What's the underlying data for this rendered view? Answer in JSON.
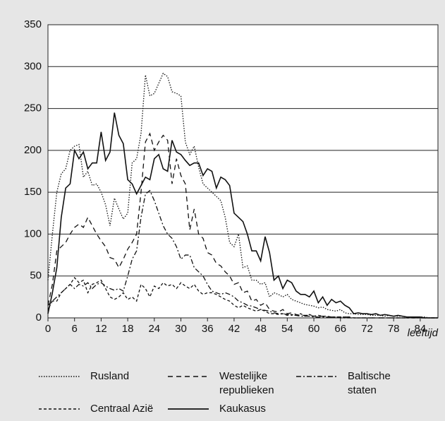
{
  "chart_data": {
    "type": "line",
    "x_label": "leeftijd",
    "x": [
      0,
      1,
      2,
      3,
      4,
      5,
      6,
      7,
      8,
      9,
      10,
      11,
      12,
      13,
      14,
      15,
      16,
      17,
      18,
      19,
      20,
      21,
      22,
      23,
      24,
      25,
      26,
      27,
      28,
      29,
      30,
      31,
      32,
      33,
      34,
      35,
      36,
      37,
      38,
      39,
      40,
      41,
      42,
      43,
      44,
      45,
      46,
      47,
      48,
      49,
      50,
      51,
      52,
      53,
      54,
      55,
      56,
      57,
      58,
      59,
      60,
      61,
      62,
      63,
      64,
      65,
      66,
      67,
      68,
      69,
      70,
      71,
      72,
      73,
      74,
      75,
      76,
      77,
      78,
      79,
      80,
      81,
      82,
      83,
      84,
      85,
      86,
      87,
      88
    ],
    "xlim": [
      0,
      88
    ],
    "xticks": [
      0,
      6,
      12,
      18,
      24,
      30,
      36,
      42,
      48,
      54,
      60,
      66,
      72,
      78,
      84
    ],
    "ylim": [
      0,
      350
    ],
    "yticks": [
      0,
      50,
      100,
      150,
      200,
      250,
      300,
      350
    ],
    "grid": true,
    "series": [
      {
        "name": "Rusland",
        "color": "#111111",
        "style": "dotted",
        "values": [
          45,
          100,
          150,
          172,
          178,
          200,
          205,
          207,
          168,
          175,
          158,
          160,
          150,
          135,
          110,
          143,
          130,
          118,
          125,
          185,
          190,
          220,
          290,
          265,
          268,
          280,
          292,
          288,
          270,
          268,
          265,
          210,
          195,
          205,
          180,
          160,
          155,
          150,
          145,
          140,
          120,
          90,
          85,
          100,
          60,
          62,
          45,
          45,
          40,
          42,
          25,
          30,
          28,
          25,
          28,
          22,
          20,
          18,
          16,
          15,
          14,
          12,
          13,
          10,
          9,
          8,
          10,
          6,
          5,
          5,
          4,
          4,
          4,
          3,
          3,
          3,
          2,
          3,
          2,
          2,
          2,
          1,
          1,
          1,
          1,
          1,
          0,
          0,
          0
        ]
      },
      {
        "name": "Westelijke republieken",
        "color": "#111111",
        "style": "long-dash",
        "values": [
          15,
          40,
          80,
          85,
          90,
          100,
          108,
          112,
          108,
          120,
          110,
          100,
          92,
          85,
          72,
          70,
          60,
          70,
          82,
          90,
          100,
          150,
          210,
          220,
          200,
          210,
          218,
          212,
          160,
          190,
          170,
          160,
          105,
          130,
          100,
          95,
          78,
          75,
          65,
          62,
          55,
          50,
          40,
          42,
          30,
          32,
          20,
          22,
          15,
          18,
          10,
          8,
          7,
          10,
          5,
          6,
          4,
          3,
          3,
          3,
          2,
          2,
          2,
          1,
          1,
          1,
          1,
          1,
          1,
          0,
          0,
          0,
          0,
          0,
          0,
          0,
          0,
          0,
          0,
          0,
          0,
          0,
          0,
          0,
          0,
          0,
          0,
          0,
          0
        ]
      },
      {
        "name": "Baltische staten",
        "color": "#111111",
        "style": "dash-dot",
        "values": [
          10,
          20,
          25,
          30,
          35,
          40,
          35,
          40,
          38,
          42,
          35,
          40,
          42,
          38,
          35,
          33,
          35,
          32,
          50,
          70,
          80,
          120,
          148,
          152,
          140,
          125,
          110,
          100,
          95,
          85,
          70,
          75,
          75,
          60,
          55,
          50,
          40,
          32,
          30,
          28,
          30,
          28,
          25,
          20,
          18,
          15,
          14,
          12,
          10,
          9,
          8,
          6,
          5,
          5,
          4,
          3,
          3,
          2,
          2,
          2,
          1,
          1,
          1,
          1,
          1,
          1,
          0,
          0,
          0,
          0,
          0,
          0,
          0,
          0,
          0,
          0,
          0,
          0,
          0,
          0,
          0,
          0,
          0,
          0,
          0,
          0,
          0,
          0,
          0
        ]
      },
      {
        "name": "Centraal Azië",
        "color": "#111111",
        "style": "short-dash",
        "values": [
          15,
          20,
          20,
          30,
          35,
          40,
          48,
          42,
          45,
          30,
          40,
          42,
          45,
          35,
          25,
          22,
          25,
          30,
          22,
          25,
          20,
          40,
          35,
          25,
          38,
          35,
          42,
          38,
          40,
          35,
          42,
          38,
          35,
          40,
          32,
          28,
          30,
          30,
          28,
          25,
          22,
          20,
          15,
          12,
          15,
          12,
          10,
          8,
          10,
          8,
          5,
          5,
          4,
          5,
          3,
          4,
          3,
          5,
          2,
          4,
          2,
          3,
          2,
          2,
          1,
          1,
          1,
          1,
          1,
          0,
          0,
          0,
          0,
          0,
          0,
          0,
          0,
          0,
          0,
          0,
          0,
          0,
          0,
          0,
          0,
          0,
          0,
          0,
          0
        ]
      },
      {
        "name": "Kaukasus",
        "color": "#111111",
        "style": "solid",
        "values": [
          5,
          30,
          60,
          120,
          155,
          160,
          200,
          190,
          198,
          178,
          185,
          185,
          222,
          188,
          198,
          245,
          218,
          208,
          165,
          160,
          148,
          158,
          168,
          165,
          190,
          195,
          178,
          175,
          212,
          198,
          195,
          188,
          182,
          185,
          185,
          170,
          178,
          175,
          155,
          168,
          165,
          158,
          125,
          120,
          115,
          100,
          80,
          80,
          68,
          97,
          78,
          45,
          50,
          35,
          45,
          42,
          32,
          28,
          28,
          25,
          32,
          18,
          25,
          15,
          22,
          18,
          20,
          15,
          12,
          5,
          6,
          5,
          5,
          4,
          5,
          3,
          4,
          3,
          2,
          3,
          2,
          1,
          1,
          1,
          1,
          0,
          0,
          0,
          0
        ]
      }
    ]
  }
}
